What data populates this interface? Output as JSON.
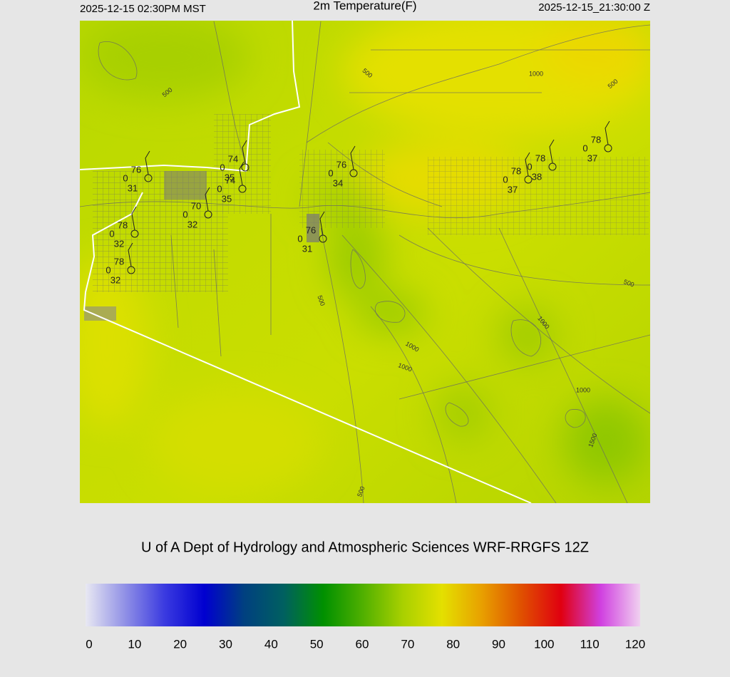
{
  "header": {
    "left": "2025-12-15 02:30PM MST",
    "title": "2m Temperature(F)",
    "right": "2025-12-15_21:30:00 Z"
  },
  "stations": [
    {
      "temp": 76,
      "dew": 31,
      "wind": 0
    },
    {
      "temp": 74,
      "dew": 35,
      "wind": 0
    },
    {
      "temp": 74,
      "dew": 35,
      "wind": 0
    },
    {
      "temp": 76,
      "dew": 34,
      "wind": 0
    },
    {
      "temp": 70,
      "dew": 32,
      "wind": 0
    },
    {
      "temp": 76,
      "dew": 31,
      "wind": 0
    },
    {
      "temp": 78,
      "dew": 32,
      "wind": 0
    },
    {
      "temp": 78,
      "dew": 32,
      "wind": 0
    },
    {
      "temp": 78,
      "dew": 37,
      "wind": 0
    },
    {
      "temp": 78,
      "dew": 38,
      "wind": 0
    },
    {
      "temp": 78,
      "dew": 37,
      "wind": 0
    }
  ],
  "contour_labels": [
    "500",
    "500",
    "1000",
    "500",
    "500",
    "500",
    "1000",
    "1000",
    "1000",
    "1000",
    "1500",
    "500"
  ],
  "footer": {
    "credit": "U of A Dept of Hydrology and Atmospheric Sciences WRF-RRGFS 12Z"
  },
  "colorbar": {
    "range": [
      0,
      120
    ],
    "ticks": [
      0,
      10,
      20,
      30,
      40,
      50,
      60,
      70,
      80,
      90,
      100,
      110,
      120
    ],
    "colors": [
      "#e8e8f2",
      "#9090e6",
      "#3a3ae0",
      "#0000d0",
      "#004080",
      "#006060",
      "#009000",
      "#50b000",
      "#a8d000",
      "#e4e000",
      "#e8a000",
      "#e05000",
      "#e00010",
      "#d040e0",
      "#f0d0f0"
    ]
  }
}
